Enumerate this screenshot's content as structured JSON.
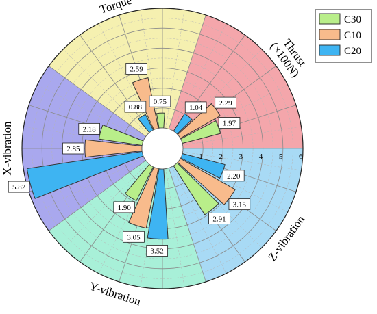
{
  "chart_data": {
    "type": "polar-bar",
    "rlim": [
      0,
      6
    ],
    "radial_ticks": [
      "1",
      "2",
      "3",
      "4",
      "5",
      "6"
    ],
    "grid": true,
    "legend_position": "top-right",
    "categories": [
      {
        "label": "Thrust\n(×100N)",
        "color": "#f4a6ab"
      },
      {
        "label": "Z-vibration",
        "color": "#a8daf5"
      },
      {
        "label": "Y-vibration",
        "color": "#a8f0d8"
      },
      {
        "label": "X-vibration",
        "color": "#a9a8ee"
      },
      {
        "label": "Torque",
        "color": "#f5f0b0"
      }
    ],
    "series": [
      {
        "name": "C30",
        "color": "#b9ee8a",
        "values": [
          1.97,
          2.91,
          1.9,
          2.18,
          0.75
        ]
      },
      {
        "name": "C10",
        "color": "#f8bb8c",
        "values": [
          2.29,
          3.15,
          3.05,
          2.85,
          2.59
        ]
      },
      {
        "name": "C20",
        "color": "#3eb4f2",
        "values": [
          1.04,
          2.2,
          3.52,
          5.82,
          0.88
        ]
      }
    ],
    "value_labels": [
      [
        "1.97",
        "2.91",
        "1.90",
        "2.18",
        "0.75"
      ],
      [
        "2.29",
        "3.15",
        "3.05",
        "2.85",
        "2.59"
      ],
      [
        "1.04",
        "2.20",
        "3.52",
        "5.82",
        "0.88"
      ]
    ]
  }
}
